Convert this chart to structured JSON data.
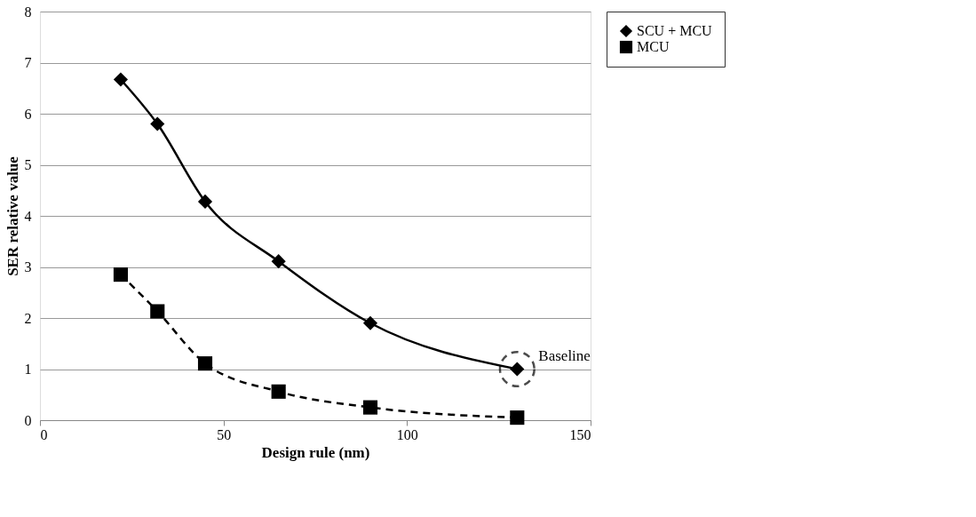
{
  "chart_data": {
    "type": "line",
    "xlabel": "Design rule (nm)",
    "ylabel": "SER relative value",
    "xlim": [
      0,
      150
    ],
    "xticks": [
      0,
      50,
      100,
      150
    ],
    "ylim": [
      0,
      8
    ],
    "yticks": [
      0,
      1,
      2,
      3,
      4,
      5,
      6,
      7,
      8
    ],
    "grid": "y",
    "legend": "right",
    "series": [
      {
        "name": "SCU + MCU",
        "color": "#000000",
        "marker": "diamond",
        "line_style": "solid",
        "x": [
          22,
          32,
          45,
          65,
          90,
          130
        ],
        "values": [
          6.67,
          5.8,
          4.28,
          3.11,
          1.9,
          1.0
        ]
      },
      {
        "name": "MCU",
        "color": "#000000",
        "marker": "square",
        "line_style": "dashed",
        "x": [
          22,
          32,
          45,
          65,
          90,
          130
        ],
        "values": [
          2.85,
          2.13,
          1.11,
          0.56,
          0.25,
          0.05
        ]
      }
    ],
    "annotations": [
      {
        "text": "Baseline",
        "x": 130,
        "y": 1.0
      }
    ]
  }
}
